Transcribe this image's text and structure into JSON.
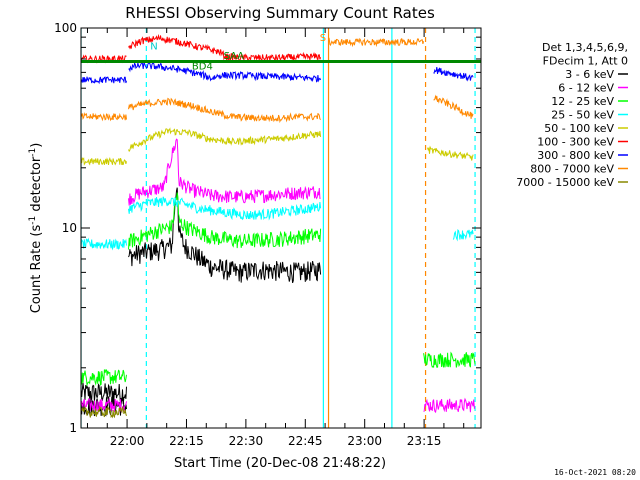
{
  "chart_data": {
    "type": "line",
    "title": "RHESSI Observing Summary Count Rates",
    "xlabel": "Start Time (20-Dec-08 21:48:22)",
    "ylabel": "Count Rate (s",
    "ylabel_sup": "-1",
    "ylabel_tail": " detector",
    "ylabel_tail_sup": "-1",
    "ylabel_close": ")",
    "x_unit": "minutes since 21:48:22",
    "xlim": [
      0,
      101
    ],
    "ylim": [
      1,
      100
    ],
    "yscale": "log",
    "ytick_labels": [
      "1",
      "10",
      "100"
    ],
    "xtick_labels": [
      "22:00",
      "22:15",
      "22:30",
      "22:45",
      "23:00",
      "23:15"
    ],
    "footer": "16-Oct-2021 08:20",
    "legend": {
      "header_lines": [
        "Det 1,3,4,5,6,9,",
        "FDecim 1, Att 0"
      ],
      "entries": [
        {
          "label": "3 - 6 keV",
          "color": "#000000"
        },
        {
          "label": "6 - 12 keV",
          "color": "#ff00ff"
        },
        {
          "label": "12 - 25 keV",
          "color": "#00ff00"
        },
        {
          "label": "25 - 50 keV",
          "color": "#00ffff"
        },
        {
          "label": "50 - 100 keV",
          "color": "#cccc00"
        },
        {
          "label": "100 - 300 keV",
          "color": "#ff0000"
        },
        {
          "label": "300 - 800 keV",
          "color": "#0000ff"
        },
        {
          "label": "800 - 7000 keV",
          "color": "#ff8800"
        },
        {
          "label": "7000 - 15000 keV",
          "color": "#888800"
        }
      ]
    },
    "annotations": [
      {
        "text": "N",
        "x": 17.5,
        "y": 78,
        "color": "#00cccc"
      },
      {
        "text": "S",
        "x": 60.3,
        "y": 86,
        "color": "#ff8800"
      },
      {
        "text": "SAA",
        "x": 36,
        "y": 70,
        "color": "#008800"
      },
      {
        "text": "BD4",
        "x": 28,
        "y": 62,
        "color": "#008800"
      }
    ],
    "attenuator_bar": {
      "y": 68,
      "x_start": 0,
      "x_end": 101,
      "color": "#008800"
    },
    "vertical_markers": [
      {
        "x": 0,
        "color": "#00ffff",
        "dashed": false
      },
      {
        "x": 16.5,
        "color": "#00ffff",
        "dashed": true
      },
      {
        "x": 61.2,
        "color": "#00ffff",
        "dashed": false
      },
      {
        "x": 78.5,
        "color": "#00ffff",
        "dashed": false
      },
      {
        "x": 99.5,
        "color": "#00ffff",
        "dashed": true
      },
      {
        "x": 62.5,
        "color": "#ff8800",
        "dashed": false
      },
      {
        "x": 87.0,
        "color": "#ff8800",
        "dashed": true
      }
    ],
    "series": [
      {
        "name": "3 - 6 keV",
        "color": "#000000",
        "noise": 0.12,
        "segments": [
          {
            "x": [
              0,
              11.5
            ],
            "y": [
              1.5,
              1.5
            ]
          },
          {
            "x": [
              12.0,
              15,
              20,
              23,
              24.3,
              24.7,
              26,
              30,
              33,
              40,
              45,
              50,
              55,
              60.5
            ],
            "y": [
              7.2,
              7.5,
              7.8,
              8.2,
              17,
              9.5,
              8.2,
              7.0,
              6.4,
              6.0,
              6.2,
              6.1,
              6.0,
              6.2
            ]
          },
          {
            "x": [
              0,
              11.5
            ],
            "y": [
              1.3,
              1.3
            ]
          }
        ]
      },
      {
        "name": "6 - 12 keV",
        "color": "#ff00ff",
        "noise": 0.08,
        "segments": [
          {
            "x": [
              0,
              11.5
            ],
            "y": [
              1.3,
              1.3
            ]
          },
          {
            "x": [
              12.0,
              15,
              18,
              21,
              24.3,
              24.7,
              28,
              33,
              40,
              45,
              50,
              55,
              60.5
            ],
            "y": [
              14,
              15,
              15.5,
              16,
              28,
              17,
              15.5,
              14.5,
              14.3,
              14.5,
              14.8,
              15,
              15.3
            ]
          },
          {
            "x": [
              86.5,
              99.5
            ],
            "y": [
              1.3,
              1.3
            ]
          }
        ]
      },
      {
        "name": "12 - 25 keV",
        "color": "#00ff00",
        "noise": 0.09,
        "segments": [
          {
            "x": [
              0,
              11.5
            ],
            "y": [
              1.8,
              1.8
            ]
          },
          {
            "x": [
              12.0,
              15,
              20,
              23,
              24.3,
              24.7,
              27,
              33,
              40,
              50,
              60.5
            ],
            "y": [
              8.5,
              9.0,
              9.8,
              10.2,
              15,
              10.8,
              10.0,
              9.0,
              8.6,
              8.8,
              9.3
            ]
          },
          {
            "x": [
              86.5,
              99.5
            ],
            "y": [
              2.2,
              2.2
            ]
          }
        ]
      },
      {
        "name": "25 - 50 keV",
        "color": "#00ffff",
        "noise": 0.06,
        "segments": [
          {
            "x": [
              0,
              11.5
            ],
            "y": [
              8.3,
              8.3
            ]
          },
          {
            "x": [
              12.0,
              17,
              22,
              26,
              30,
              36,
              42,
              48,
              55,
              60.5
            ],
            "y": [
              12.5,
              13.3,
              13.7,
              13.2,
              12.5,
              12.0,
              11.6,
              11.8,
              12.3,
              12.8
            ]
          },
          {
            "x": [
              94.0,
              99.0
            ],
            "y": [
              9.3,
              9.3
            ]
          }
        ]
      },
      {
        "name": "50 - 100 keV",
        "color": "#cccc00",
        "noise": 0.04,
        "segments": [
          {
            "x": [
              0,
              11.5
            ],
            "y": [
              21.5,
              21.5
            ]
          },
          {
            "x": [
              12.0,
              17,
              22,
              27,
              32,
              38,
              44,
              50,
              56,
              60.5
            ],
            "y": [
              25,
              28,
              30.5,
              30,
              28,
              27,
              27.5,
              28,
              29,
              29.5
            ]
          },
          {
            "x": [
              87.5,
              99.0
            ],
            "y": [
              24.5,
              22.5
            ]
          }
        ]
      },
      {
        "name": "100 - 300 keV",
        "color": "#ff0000",
        "noise": 0.04,
        "segments": [
          {
            "x": [
              0,
              11.5
            ],
            "y": [
              70,
              70
            ]
          },
          {
            "x": [
              12.0,
              15,
              20,
              25,
              30,
              35,
              36.5,
              40,
              50,
              60.5
            ],
            "y": [
              80,
              86,
              89,
              85,
              80,
              76,
              72,
              71,
              71,
              72
            ]
          }
        ]
      },
      {
        "name": "300 - 800 keV",
        "color": "#0000ff",
        "noise": 0.04,
        "segments": [
          {
            "x": [
              0,
              11.5
            ],
            "y": [
              55,
              55
            ]
          },
          {
            "x": [
              12.0,
              15,
              20,
              25,
              31,
              33,
              35,
              40,
              50,
              60.5
            ],
            "y": [
              63,
              65,
              64,
              62,
              58,
              56,
              58,
              58,
              57,
              56
            ]
          },
          {
            "x": [
              89.0,
              99.0
            ],
            "y": [
              62,
              56
            ]
          }
        ]
      },
      {
        "name": "800 - 7000 keV",
        "color": "#ff8800",
        "noise": 0.04,
        "segments": [
          {
            "x": [
              0,
              11.5
            ],
            "y": [
              36,
              36
            ]
          },
          {
            "x": [
              12.0,
              17,
              22,
              28,
              33,
              38,
              44,
              50,
              55,
              60.5
            ],
            "y": [
              40,
              42,
              43,
              41,
              38,
              36,
              35.5,
              35.5,
              36,
              36
            ]
          },
          {
            "x": [
              62.5,
              86.5
            ],
            "y": [
              85,
              85
            ]
          },
          {
            "x": [
              89.0,
              99.0
            ],
            "y": [
              45,
              36
            ]
          }
        ]
      },
      {
        "name": "7000 - 15000 keV",
        "color": "#888800",
        "noise": 0.06,
        "segments": [
          {
            "x": [
              0,
              11.5
            ],
            "y": [
              1.2,
              1.2
            ]
          }
        ]
      }
    ]
  }
}
